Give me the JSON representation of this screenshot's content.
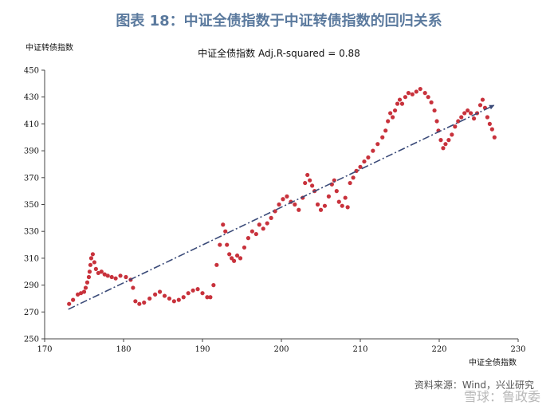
{
  "header": {
    "title": "图表 18：中证全债指数于中证转债指数的回归关系"
  },
  "footer": {
    "source": "资料来源：Wind，兴业研究",
    "watermark": "雪球：鲁政委"
  },
  "chart_data": {
    "type": "scatter",
    "title": "中证全债指数 Adj.R-squared = 0.88",
    "xlabel": "中证全债指数",
    "ylabel": "中证转债指数",
    "xlim": [
      170,
      230
    ],
    "ylim": [
      250,
      450
    ],
    "xticks": [
      "170",
      "180",
      "190",
      "200",
      "210",
      "220",
      "230"
    ],
    "yticks": [
      "250",
      "270",
      "290",
      "310",
      "330",
      "350",
      "370",
      "390",
      "410",
      "430",
      "450"
    ],
    "grid": false,
    "point_color": "#c8323c",
    "trend_color": "#3a4a78",
    "trendline": {
      "x": [
        173,
        227
      ],
      "y": [
        272,
        424
      ]
    },
    "series": [
      {
        "points": [
          [
            173.1,
            276
          ],
          [
            173.6,
            279
          ],
          [
            174.2,
            283
          ],
          [
            174.6,
            284
          ],
          [
            175.0,
            285
          ],
          [
            175.2,
            288
          ],
          [
            175.4,
            292
          ],
          [
            175.6,
            296
          ],
          [
            175.7,
            300
          ],
          [
            175.8,
            305
          ],
          [
            175.9,
            310
          ],
          [
            176.1,
            313
          ],
          [
            176.3,
            307
          ],
          [
            176.5,
            302
          ],
          [
            176.8,
            299
          ],
          [
            177.2,
            300
          ],
          [
            177.6,
            298
          ],
          [
            178.0,
            297
          ],
          [
            178.5,
            296
          ],
          [
            179.0,
            295
          ],
          [
            179.6,
            297
          ],
          [
            180.3,
            296
          ],
          [
            180.9,
            294
          ],
          [
            181.2,
            288
          ],
          [
            181.5,
            278
          ],
          [
            182.0,
            276
          ],
          [
            182.6,
            277
          ],
          [
            183.3,
            280
          ],
          [
            184.0,
            283
          ],
          [
            184.6,
            285
          ],
          [
            185.2,
            282
          ],
          [
            185.8,
            280
          ],
          [
            186.4,
            278
          ],
          [
            187.0,
            279
          ],
          [
            187.6,
            281
          ],
          [
            188.2,
            284
          ],
          [
            188.8,
            286
          ],
          [
            189.4,
            287
          ],
          [
            190.0,
            284
          ],
          [
            190.6,
            281
          ],
          [
            191.0,
            281
          ],
          [
            191.4,
            290
          ],
          [
            191.8,
            305
          ],
          [
            192.2,
            320
          ],
          [
            192.6,
            335
          ],
          [
            192.9,
            330
          ],
          [
            193.1,
            320
          ],
          [
            193.4,
            313
          ],
          [
            193.7,
            310
          ],
          [
            194.0,
            308
          ],
          [
            194.4,
            312
          ],
          [
            194.8,
            310
          ],
          [
            195.3,
            318
          ],
          [
            195.8,
            325
          ],
          [
            196.3,
            330
          ],
          [
            196.8,
            328
          ],
          [
            197.2,
            335
          ],
          [
            197.7,
            332
          ],
          [
            198.2,
            336
          ],
          [
            198.7,
            340
          ],
          [
            199.2,
            345
          ],
          [
            199.7,
            350
          ],
          [
            200.2,
            354
          ],
          [
            200.7,
            356
          ],
          [
            201.2,
            352
          ],
          [
            201.7,
            350
          ],
          [
            202.2,
            346
          ],
          [
            202.7,
            355
          ],
          [
            203.0,
            366
          ],
          [
            203.3,
            372
          ],
          [
            203.6,
            368
          ],
          [
            203.9,
            364
          ],
          [
            204.2,
            360
          ],
          [
            204.6,
            350
          ],
          [
            205.0,
            346
          ],
          [
            205.5,
            349
          ],
          [
            206.0,
            356
          ],
          [
            206.4,
            365
          ],
          [
            206.7,
            368
          ],
          [
            207.0,
            360
          ],
          [
            207.3,
            352
          ],
          [
            207.7,
            349
          ],
          [
            208.1,
            355
          ],
          [
            208.4,
            348
          ],
          [
            208.7,
            366
          ],
          [
            209.1,
            370
          ],
          [
            209.5,
            375
          ],
          [
            210.0,
            378
          ],
          [
            210.5,
            382
          ],
          [
            211.0,
            385
          ],
          [
            211.6,
            390
          ],
          [
            212.2,
            395
          ],
          [
            212.8,
            400
          ],
          [
            213.2,
            405
          ],
          [
            213.5,
            412
          ],
          [
            213.8,
            418
          ],
          [
            214.1,
            415
          ],
          [
            214.4,
            420
          ],
          [
            214.7,
            425
          ],
          [
            215.0,
            428
          ],
          [
            215.3,
            425
          ],
          [
            215.7,
            430
          ],
          [
            216.1,
            433
          ],
          [
            216.6,
            432
          ],
          [
            217.1,
            434
          ],
          [
            217.6,
            436
          ],
          [
            218.2,
            433
          ],
          [
            218.6,
            430
          ],
          [
            219.0,
            426
          ],
          [
            219.4,
            420
          ],
          [
            219.7,
            412
          ],
          [
            219.9,
            405
          ],
          [
            220.2,
            398
          ],
          [
            220.5,
            392
          ],
          [
            220.8,
            395
          ],
          [
            221.2,
            398
          ],
          [
            221.6,
            402
          ],
          [
            222.0,
            408
          ],
          [
            222.4,
            412
          ],
          [
            222.8,
            415
          ],
          [
            223.2,
            418
          ],
          [
            223.6,
            420
          ],
          [
            224.0,
            418
          ],
          [
            224.4,
            414
          ],
          [
            224.8,
            418
          ],
          [
            225.2,
            424
          ],
          [
            225.5,
            428
          ],
          [
            225.8,
            422
          ],
          [
            226.1,
            415
          ],
          [
            226.4,
            410
          ],
          [
            226.7,
            406
          ],
          [
            227.0,
            400
          ]
        ]
      }
    ]
  }
}
